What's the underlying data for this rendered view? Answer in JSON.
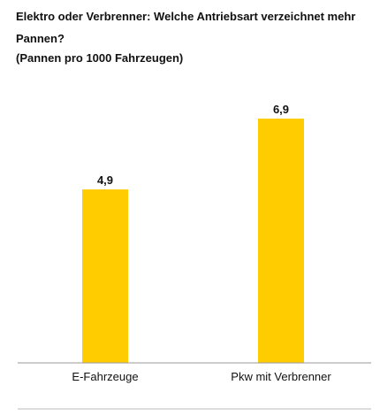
{
  "chart_data": {
    "type": "bar",
    "title": "Elektro oder Verbrenner: Welche Antriebsart verzeichnet mehr Pannen?",
    "subtitle": "(Pannen pro 1000 Fahrzeugen)",
    "categories": [
      "E-Fahrzeuge",
      "Pkw mit Verbrenner"
    ],
    "values": [
      4.9,
      6.9
    ],
    "value_labels": [
      "4,9",
      "6,9"
    ],
    "ylim": [
      0,
      9
    ],
    "grid": false,
    "legend": "none",
    "colors": {
      "bar": "#FFCC00",
      "baseline": "#999999",
      "text": "#111111"
    }
  }
}
